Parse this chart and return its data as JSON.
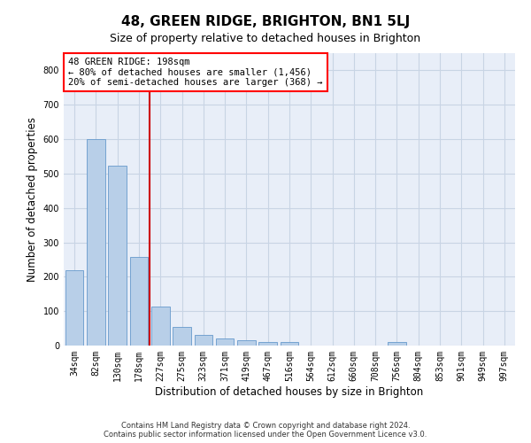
{
  "title": "48, GREEN RIDGE, BRIGHTON, BN1 5LJ",
  "subtitle": "Size of property relative to detached houses in Brighton",
  "xlabel": "Distribution of detached houses by size in Brighton",
  "ylabel": "Number of detached properties",
  "categories": [
    "34sqm",
    "82sqm",
    "130sqm",
    "178sqm",
    "227sqm",
    "275sqm",
    "323sqm",
    "371sqm",
    "419sqm",
    "467sqm",
    "516sqm",
    "564sqm",
    "612sqm",
    "660sqm",
    "708sqm",
    "756sqm",
    "804sqm",
    "853sqm",
    "901sqm",
    "949sqm",
    "997sqm"
  ],
  "values": [
    218,
    600,
    522,
    257,
    114,
    53,
    32,
    20,
    16,
    10,
    10,
    0,
    0,
    0,
    0,
    10,
    0,
    0,
    0,
    0,
    0
  ],
  "bar_color": "#b8cfe8",
  "bar_edge_color": "#6699cc",
  "grid_color": "#c8d4e4",
  "bg_color": "#e8eef8",
  "property_line_color": "#cc0000",
  "annotation_line1": "48 GREEN RIDGE: 198sqm",
  "annotation_line2": "← 80% of detached houses are smaller (1,456)",
  "annotation_line3": "20% of semi-detached houses are larger (368) →",
  "ylim": [
    0,
    850
  ],
  "yticks": [
    0,
    100,
    200,
    300,
    400,
    500,
    600,
    700,
    800
  ],
  "footer_line1": "Contains HM Land Registry data © Crown copyright and database right 2024.",
  "footer_line2": "Contains public sector information licensed under the Open Government Licence v3.0.",
  "title_fontsize": 11,
  "subtitle_fontsize": 9,
  "label_fontsize": 8.5,
  "tick_fontsize": 7,
  "annot_fontsize": 7.5
}
